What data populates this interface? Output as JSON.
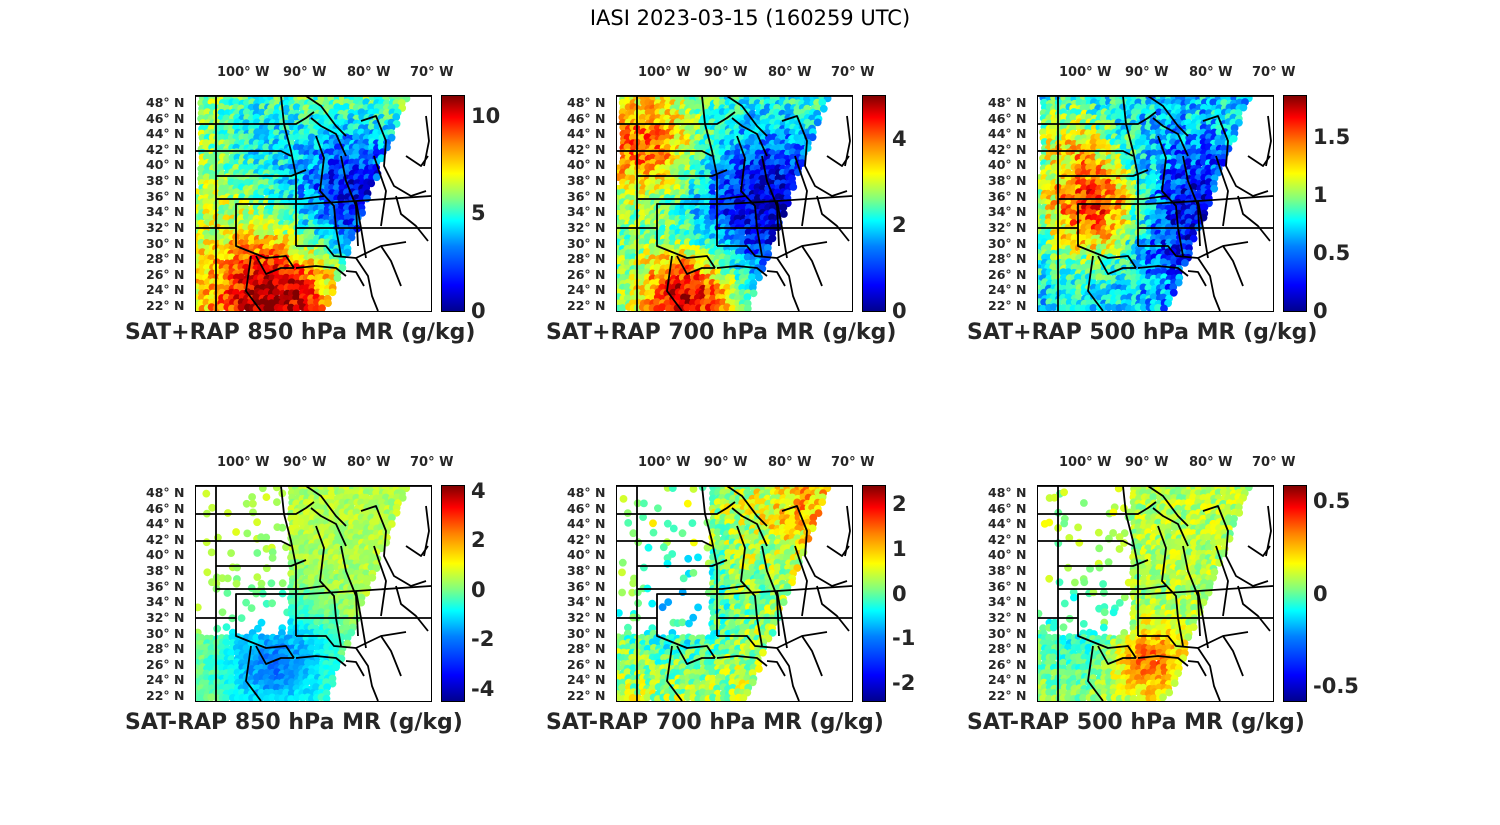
{
  "figure": {
    "title": "IASI 2023-03-15 (160259 UTC)"
  },
  "lon_ticks": [
    "100° W",
    "90° W",
    "80° W",
    "70° W"
  ],
  "lat_ticks": [
    "48° N",
    "46° N",
    "44° N",
    "42° N",
    "40° N",
    "38° N",
    "36° N",
    "34° N",
    "32° N",
    "30° N",
    "28° N",
    "26° N",
    "24° N",
    "22° N"
  ],
  "colormap": {
    "name": "jet",
    "stops": [
      "#00008f",
      "#0000ff",
      "#0080ff",
      "#00ffff",
      "#80ff80",
      "#ffff00",
      "#ff8000",
      "#ff0000",
      "#800000"
    ]
  },
  "map": {
    "region": "Continental United States (east half)",
    "lon_range_deg": [
      -107,
      -67
    ],
    "lat_range_deg": [
      22,
      49.5
    ],
    "projection": "Lambert conformal",
    "coastline_color": "#000000"
  },
  "panels": [
    {
      "id": "sat-rap-sum-850",
      "title": "SAT+RAP 850 hPa MR (g/kg)",
      "colorbar": {
        "min": 0,
        "max": 11,
        "ticks": [
          "10",
          "5",
          "0"
        ]
      }
    },
    {
      "id": "sat-rap-sum-700",
      "title": "SAT+RAP 700 hPa MR (g/kg)",
      "colorbar": {
        "min": 0,
        "max": 5,
        "ticks": [
          "4",
          "2",
          "0"
        ]
      }
    },
    {
      "id": "sat-rap-sum-500",
      "title": "SAT+RAP 500 hPa MR (g/kg)",
      "colorbar": {
        "min": 0,
        "max": 1.85,
        "ticks": [
          "1.5",
          "1",
          "0.5",
          "0"
        ]
      }
    },
    {
      "id": "sat-rap-diff-850",
      "title": "SAT-RAP 850 hPa MR (g/kg)",
      "colorbar": {
        "min": -4.5,
        "max": 4.2,
        "ticks": [
          "4",
          "2",
          "0",
          "-2",
          "-4"
        ]
      }
    },
    {
      "id": "sat-rap-diff-700",
      "title": "SAT-RAP 700 hPa MR (g/kg)",
      "colorbar": {
        "min": -2.4,
        "max": 2.4,
        "ticks": [
          "2",
          "1",
          "0",
          "-1",
          "-2"
        ]
      }
    },
    {
      "id": "sat-rap-diff-500",
      "title": "SAT-RAP 500 hPa MR (g/kg)",
      "colorbar": {
        "min": -0.58,
        "max": 0.58,
        "ticks": [
          "0.5",
          "0",
          "-0.5"
        ]
      }
    }
  ]
}
